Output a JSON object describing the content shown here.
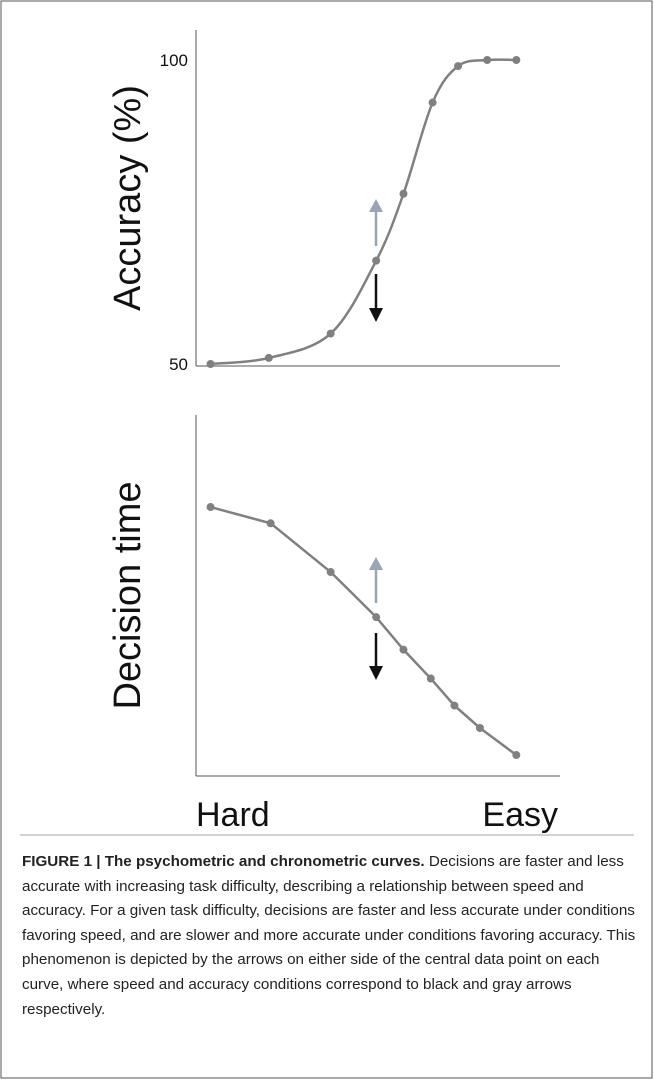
{
  "chart_data": [
    {
      "type": "line",
      "ylabel": "Accuracy (%)",
      "color": "#808080",
      "x": [
        4,
        20,
        37,
        49.5,
        57,
        65,
        72,
        80,
        88
      ],
      "series": [
        {
          "values": [
            50,
            51,
            55,
            67,
            78,
            93,
            99,
            100,
            100
          ]
        }
      ],
      "xlim": [
        0,
        100
      ],
      "ylim": [
        50,
        100
      ],
      "yticks": [
        50,
        100
      ],
      "smooth": true
    },
    {
      "type": "line",
      "ylabel": "Decision time",
      "color": "#808080",
      "x": [
        4,
        20.5,
        37,
        49.5,
        57,
        64.5,
        71,
        78,
        88
      ],
      "series": [
        {
          "values": [
            74.5,
            70,
            56.5,
            44,
            35,
            27,
            19.5,
            13.3,
            5.8
          ]
        }
      ],
      "xlim": [
        0,
        100
      ],
      "ylim": [
        0,
        100
      ],
      "smooth": false,
      "xticks_text": [
        "Hard",
        "Easy"
      ]
    }
  ],
  "caption": {
    "label": "FIGURE 1 | The psychometric and chronometric curves.",
    "text": "Decisions are faster and less accurate with increasing task difficulty, describing a relationship between speed and accuracy. For a given task difficulty, decisions are faster and less accurate under conditions favoring speed, and are slower and more accurate under conditions favoring accuracy. This phenomenon is depicted by the arrows on either side of the central data point on each curve, where speed and accuracy conditions correspond to black and gray arrows respectively."
  }
}
